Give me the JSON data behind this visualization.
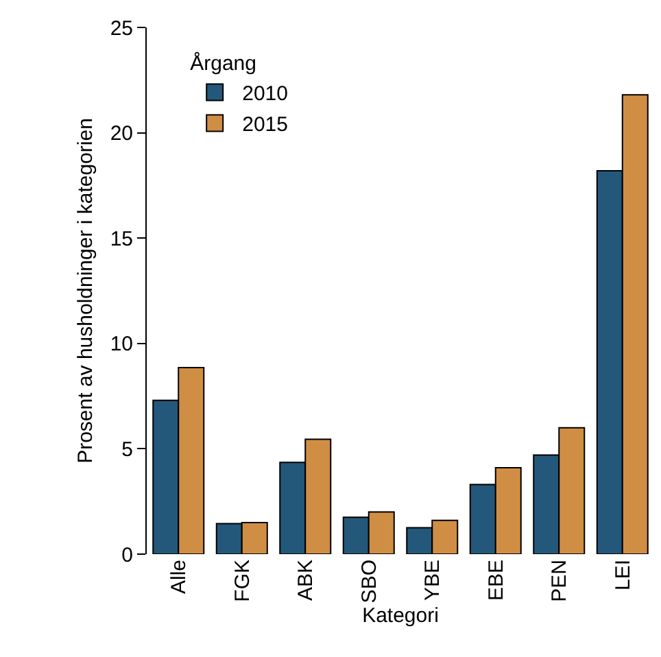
{
  "chart_data": {
    "type": "bar",
    "xlabel": "Kategori",
    "ylabel": "Prosent av husholdninger i kategorien",
    "legend_title": "Årgang",
    "categories": [
      "Alle",
      "FGK",
      "ABK",
      "SBO",
      "YBE",
      "EBE",
      "PEN",
      "LEI"
    ],
    "series": [
      {
        "name": "2010",
        "color": "#24587a",
        "values": [
          7.3,
          1.45,
          4.35,
          1.75,
          1.25,
          3.3,
          4.7,
          18.2
        ]
      },
      {
        "name": "2015",
        "color": "#d08e45",
        "values": [
          8.85,
          1.5,
          5.45,
          2.0,
          1.6,
          4.1,
          6.0,
          21.8
        ]
      }
    ],
    "ylim": [
      0,
      25
    ],
    "yticks": [
      0,
      5,
      10,
      15,
      20,
      25
    ],
    "grid": false,
    "legend": "top left"
  }
}
